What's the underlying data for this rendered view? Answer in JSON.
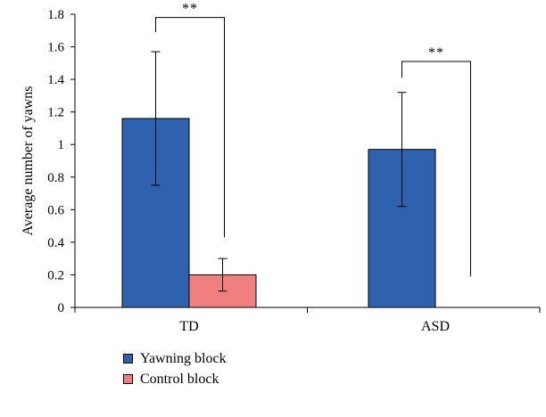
{
  "chart_data": {
    "type": "bar",
    "categories": [
      "TD",
      "ASD"
    ],
    "series": [
      {
        "name": "Yawning block",
        "color": "#2E62AE",
        "values": [
          1.16,
          0.97
        ],
        "error": [
          0.41,
          0.35
        ]
      },
      {
        "name": "Control block",
        "color": "#F08080",
        "values": [
          0.2,
          null
        ],
        "error": [
          0.1,
          null
        ]
      }
    ],
    "ylabel": "Average number of yawns",
    "xlabel": "",
    "ylim": [
      0,
      1.8
    ],
    "yticks": [
      {
        "value": 0,
        "label": "0"
      },
      {
        "value": 0.2,
        "label": "0.2"
      },
      {
        "value": 0.4,
        "label": "0.4"
      },
      {
        "value": 0.6,
        "label": "0.6"
      },
      {
        "value": 0.8,
        "label": "0.8"
      },
      {
        "value": 1,
        "label": "1"
      },
      {
        "value": 1.2,
        "label": "1.2"
      },
      {
        "value": 1.4,
        "label": "1.4"
      },
      {
        "value": 1.6,
        "label": "1.6"
      },
      {
        "value": 1.8,
        "label": "1.8"
      }
    ],
    "significance": [
      {
        "category": "TD",
        "label": "**",
        "top": 1.78,
        "left_end": 1.69,
        "right_end": 0.43
      },
      {
        "category": "ASD",
        "label": "**",
        "top": 1.51,
        "left_end": 1.41,
        "right_end": 0.19
      }
    ],
    "legend_position": "bottom-left",
    "grid": false
  },
  "legend": {
    "items": [
      {
        "label": "Yawning block",
        "color": "#2E62AE"
      },
      {
        "label": "Control block",
        "color": "#F08080"
      }
    ]
  }
}
